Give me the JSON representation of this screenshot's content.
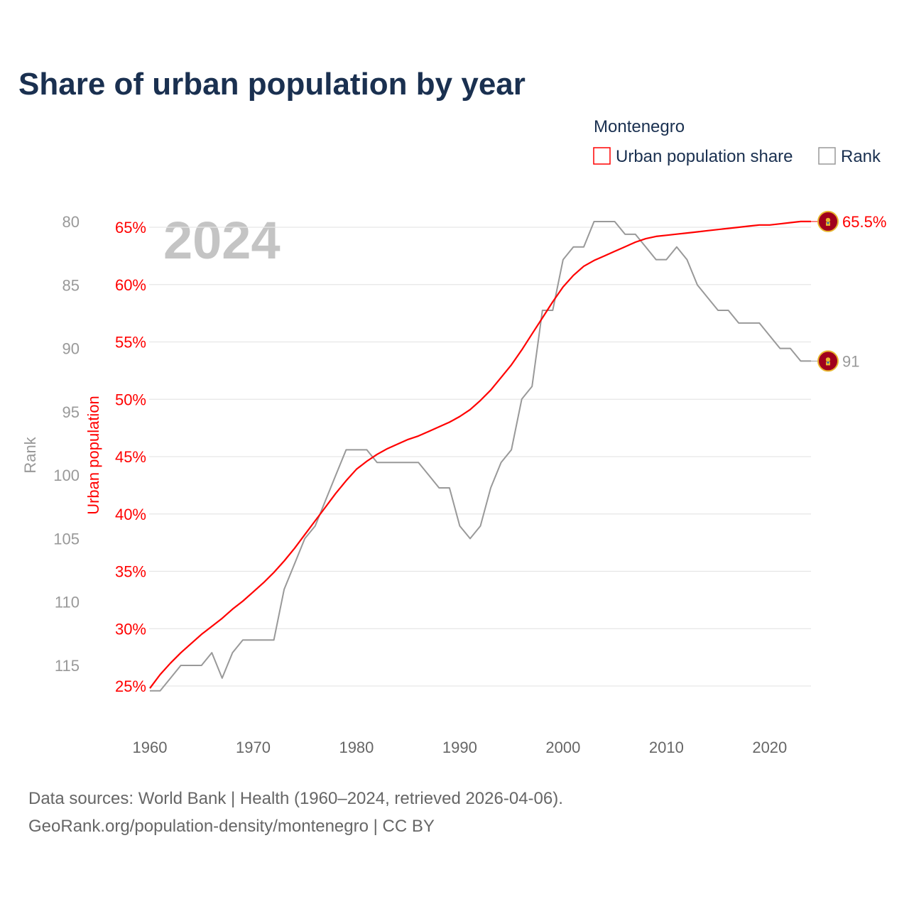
{
  "chart_data": {
    "type": "line",
    "title": "Share of urban population by year",
    "highlight_year": "2024",
    "legend": {
      "title": "Montenegro",
      "entries": [
        "Urban population share",
        "Rank"
      ],
      "placement": "top-right"
    },
    "xlabel": "",
    "ylabel_left_outer": "Rank",
    "ylabel_left_inner": "Urban population",
    "x_ticks": [
      "1960",
      "1970",
      "1980",
      "1990",
      "2000",
      "2010",
      "2020"
    ],
    "xlim": [
      1960,
      2024
    ],
    "urban_ticks": [
      "25%",
      "30%",
      "35%",
      "40%",
      "45%",
      "50%",
      "55%",
      "60%",
      "65%"
    ],
    "urban_tick_values": [
      25,
      30,
      35,
      40,
      45,
      50,
      55,
      60,
      65
    ],
    "urban_ylim": [
      25,
      65
    ],
    "rank_ticks": [
      "80",
      "85",
      "90",
      "95",
      "100",
      "105",
      "110",
      "115"
    ],
    "rank_tick_values": [
      80,
      85,
      90,
      95,
      100,
      105,
      110,
      115
    ],
    "rank_ylim": [
      80,
      115
    ],
    "rank_inverted": true,
    "grid": true,
    "x": [
      1960,
      1961,
      1962,
      1963,
      1964,
      1965,
      1966,
      1967,
      1968,
      1969,
      1970,
      1971,
      1972,
      1973,
      1974,
      1975,
      1976,
      1977,
      1978,
      1979,
      1980,
      1981,
      1982,
      1983,
      1984,
      1985,
      1986,
      1987,
      1988,
      1989,
      1990,
      1991,
      1992,
      1993,
      1994,
      1995,
      1996,
      1997,
      1998,
      1999,
      2000,
      2001,
      2002,
      2003,
      2004,
      2005,
      2006,
      2007,
      2008,
      2009,
      2010,
      2011,
      2012,
      2013,
      2014,
      2015,
      2016,
      2017,
      2018,
      2019,
      2020,
      2021,
      2022,
      2023,
      2024
    ],
    "series": [
      {
        "name": "Urban population share",
        "unit": "%",
        "color": "#ff0000",
        "values": [
          24.8,
          26.0,
          27.0,
          27.9,
          28.7,
          29.5,
          30.2,
          30.9,
          31.7,
          32.4,
          33.2,
          34.0,
          34.9,
          35.9,
          37.0,
          38.2,
          39.4,
          40.6,
          41.8,
          42.9,
          43.9,
          44.6,
          45.2,
          45.7,
          46.1,
          46.5,
          46.8,
          47.2,
          47.6,
          48.0,
          48.5,
          49.1,
          49.9,
          50.8,
          51.9,
          53.0,
          54.3,
          55.7,
          57.1,
          58.5,
          59.8,
          60.8,
          61.6,
          62.1,
          62.5,
          62.9,
          63.3,
          63.7,
          64.0,
          64.2,
          64.3,
          64.4,
          64.5,
          64.6,
          64.7,
          64.8,
          64.9,
          65.0,
          65.1,
          65.2,
          65.2,
          65.3,
          65.4,
          65.5,
          65.5
        ],
        "end_label": "65.5%"
      },
      {
        "name": "Rank",
        "color": "#999999",
        "values": [
          117,
          117,
          116,
          115,
          115,
          115,
          114,
          116,
          114,
          113,
          113,
          113,
          113,
          109,
          107,
          105,
          104,
          102,
          100,
          98,
          98,
          98,
          99,
          99,
          99,
          99,
          99,
          100,
          101,
          101,
          104,
          105,
          104,
          101,
          99,
          98,
          94,
          93,
          87,
          87,
          83,
          82,
          82,
          80,
          80,
          80,
          81,
          81,
          82,
          83,
          83,
          82,
          83,
          85,
          86,
          87,
          87,
          88,
          88,
          88,
          89,
          90,
          90,
          91,
          91
        ],
        "end_label": "91"
      }
    ]
  },
  "footer": {
    "line1": "Data sources: World Bank | Health (1960–2024, retrieved 2026-04-06).",
    "line2": "GeoRank.org/population-density/montenegro | CC BY"
  },
  "colors": {
    "title": "#1a3050",
    "urban": "#ff0000",
    "rank": "#999999",
    "flag_red": "#a0001c",
    "flag_gold": "#e8b730"
  }
}
